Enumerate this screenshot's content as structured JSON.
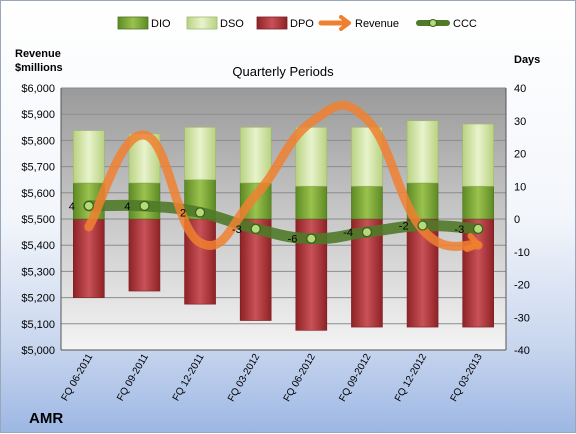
{
  "chart_data": {
    "type": "bar",
    "title": "Quarterly Periods",
    "company": "AMR",
    "left_axis_title": [
      "Revenue",
      "$millions"
    ],
    "right_axis_title": "Days",
    "categories": [
      "FQ 06-2011",
      "FQ 09-2011",
      "FQ 12-2011",
      "FQ 03-2012",
      "FQ 06-2012",
      "FQ 09-2012",
      "FQ 12-2012",
      "FQ 03-2013"
    ],
    "left_ylim": [
      5000,
      6000
    ],
    "left_ticks": [
      "$5,000",
      "$5,100",
      "$5,200",
      "$5,300",
      "$5,400",
      "$5,500",
      "$5,600",
      "$5,700",
      "$5,800",
      "$5,900",
      "$6,000"
    ],
    "right_ylim": [
      -40,
      40
    ],
    "right_ticks": [
      "-40",
      "-30",
      "-20",
      "-10",
      "0",
      "10",
      "20",
      "30",
      "40"
    ],
    "legend_position": "top",
    "series": [
      {
        "name": "DIO",
        "axis": "days",
        "color": "#7fa83a",
        "values": [
          11,
          11,
          12,
          11,
          10,
          10,
          11,
          10
        ]
      },
      {
        "name": "DSO",
        "axis": "days",
        "color": "#d4e6a8",
        "values": [
          16,
          15,
          16,
          17,
          18,
          18,
          19,
          19
        ]
      },
      {
        "name": "DPO",
        "axis": "days",
        "color": "#b03a3e",
        "values": [
          -24,
          -22,
          -26,
          -31,
          -34,
          -33,
          -33,
          -33
        ]
      },
      {
        "name": "Revenue",
        "axis": "revenue",
        "color": "#f08030",
        "values": [
          5470,
          5820,
          5410,
          5590,
          5870,
          5880,
          5460,
          5400
        ]
      },
      {
        "name": "CCC",
        "axis": "days",
        "color": "#4f7a28",
        "values": [
          4,
          4,
          2,
          -3,
          -6,
          -4,
          -2,
          -3
        ],
        "labels": [
          "4",
          "4",
          "2",
          "-3",
          "-6",
          "-4",
          "-2",
          "-3"
        ]
      }
    ]
  }
}
